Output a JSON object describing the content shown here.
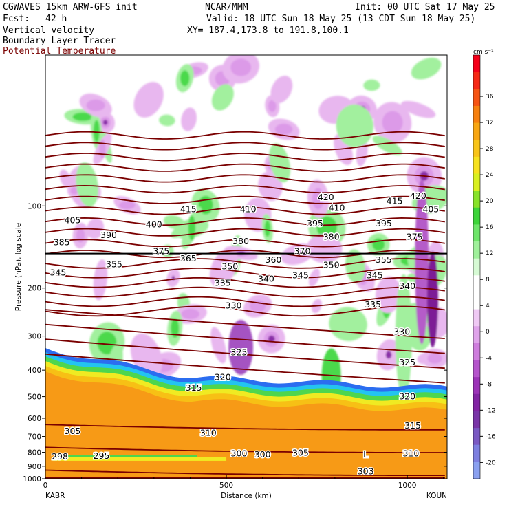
{
  "header": {
    "model": "CGWAVES 15km ARW-GFS init",
    "fcst_label": "Fcst:",
    "fcst_value": "42 h",
    "center": "NCAR/MMM",
    "init": "Init: 00 UTC Sat 17 May 25",
    "valid": "Valid: 18 UTC Sun 18 May 25 (13 CDT Sun 18 May 25)",
    "xy": "XY= 187.4,173.8 to 191.8,100.1",
    "field1": "Vertical velocity",
    "field2": "Boundary Layer Tracer",
    "field3": "Potential Temperature"
  },
  "colors": {
    "theta": "#7a0000",
    "pbl_orange": "#f79a16",
    "neg_light": "#e8b7ef",
    "pos_light": "#a2f09e",
    "pos_mid": "#4bd94b"
  },
  "chart_data": {
    "type": "contour",
    "ylabel": "Pressure (hPa), log scale",
    "xlabel": "Distance (km)",
    "x_ticks": [
      "0",
      "500",
      "1000"
    ],
    "y_ticks": [
      "100",
      "200",
      "300",
      "400",
      "500",
      "600",
      "700",
      "800",
      "900",
      "1000"
    ],
    "y_scale": "log",
    "xlim": [
      0,
      1110
    ],
    "ylim": [
      1000,
      28
    ],
    "left_station": "KABR",
    "right_station": "KOUN",
    "colorbar": {
      "units": "cm s⁻¹",
      "labels": [
        "36",
        "32",
        "28",
        "24",
        "20",
        "16",
        "12",
        "8",
        "4",
        "0",
        "-4",
        "-8",
        "-12",
        "-16",
        "-20"
      ],
      "colors": [
        "#f5001a",
        "#f62916",
        "#f65413",
        "#f7800f",
        "#f8a612",
        "#f8c418",
        "#f7e21e",
        "#d9f020",
        "#88e22a",
        "#3dd43a",
        "#6ee56a",
        "#9ff09b",
        "#d6fad4",
        "#ffffff",
        "#ffffff",
        "#efc9f4",
        "#dfa3ea",
        "#ce7ddd",
        "#b554cc",
        "#9c33b8",
        "#8224a4",
        "#7a35a8",
        "#7a59c3",
        "#7d7fe0",
        "#8aa0f0"
      ]
    },
    "theta_labels": [
      {
        "v": "420",
        "x": 775,
        "p": 93
      },
      {
        "v": "415",
        "x": 965,
        "p": 96
      },
      {
        "v": "420",
        "x": 1030,
        "p": 92
      },
      {
        "v": "415",
        "x": 395,
        "p": 103
      },
      {
        "v": "410",
        "x": 560,
        "p": 103
      },
      {
        "v": "410",
        "x": 805,
        "p": 102
      },
      {
        "v": "405",
        "x": 75,
        "p": 113
      },
      {
        "v": "400",
        "x": 300,
        "p": 117
      },
      {
        "v": "395",
        "x": 745,
        "p": 116
      },
      {
        "v": "395",
        "x": 935,
        "p": 116
      },
      {
        "v": "405",
        "x": 1065,
        "p": 103
      },
      {
        "v": "390",
        "x": 175,
        "p": 128
      },
      {
        "v": "380",
        "x": 540,
        "p": 135
      },
      {
        "v": "380",
        "x": 790,
        "p": 130
      },
      {
        "v": "375",
        "x": 1020,
        "p": 130
      },
      {
        "v": "385",
        "x": 45,
        "p": 136
      },
      {
        "v": "375",
        "x": 320,
        "p": 147
      },
      {
        "v": "370",
        "x": 710,
        "p": 147
      },
      {
        "v": "365",
        "x": 395,
        "p": 156
      },
      {
        "v": "360",
        "x": 630,
        "p": 158
      },
      {
        "v": "355",
        "x": 190,
        "p": 164
      },
      {
        "v": "355",
        "x": 935,
        "p": 158
      },
      {
        "v": "350",
        "x": 510,
        "p": 167
      },
      {
        "v": "350",
        "x": 790,
        "p": 165
      },
      {
        "v": "345",
        "x": 35,
        "p": 176
      },
      {
        "v": "345",
        "x": 705,
        "p": 180
      },
      {
        "v": "345",
        "x": 910,
        "p": 180
      },
      {
        "v": "340",
        "x": 610,
        "p": 185
      },
      {
        "v": "340",
        "x": 1000,
        "p": 197
      },
      {
        "v": "335",
        "x": 490,
        "p": 192
      },
      {
        "v": "335",
        "x": 905,
        "p": 230
      },
      {
        "v": "330",
        "x": 520,
        "p": 232
      },
      {
        "v": "330",
        "x": 985,
        "p": 290
      },
      {
        "v": "325",
        "x": 535,
        "p": 345
      },
      {
        "v": "325",
        "x": 1000,
        "p": 375
      },
      {
        "v": "320",
        "x": 490,
        "p": 425
      },
      {
        "v": "320",
        "x": 1000,
        "p": 500
      },
      {
        "v": "315",
        "x": 410,
        "p": 465
      },
      {
        "v": "315",
        "x": 1015,
        "p": 640
      },
      {
        "v": "310",
        "x": 450,
        "p": 680
      },
      {
        "v": "310",
        "x": 1010,
        "p": 810
      },
      {
        "v": "305",
        "x": 75,
        "p": 670
      },
      {
        "v": "305",
        "x": 705,
        "p": 805
      },
      {
        "v": "300",
        "x": 535,
        "p": 810
      },
      {
        "v": "300",
        "x": 600,
        "p": 815
      },
      {
        "v": "298",
        "x": 40,
        "p": 830
      },
      {
        "v": "295",
        "x": 155,
        "p": 825
      },
      {
        "v": "303",
        "x": 885,
        "p": 940
      },
      {
        "v": "L",
        "x": 885,
        "p": 815
      }
    ]
  }
}
